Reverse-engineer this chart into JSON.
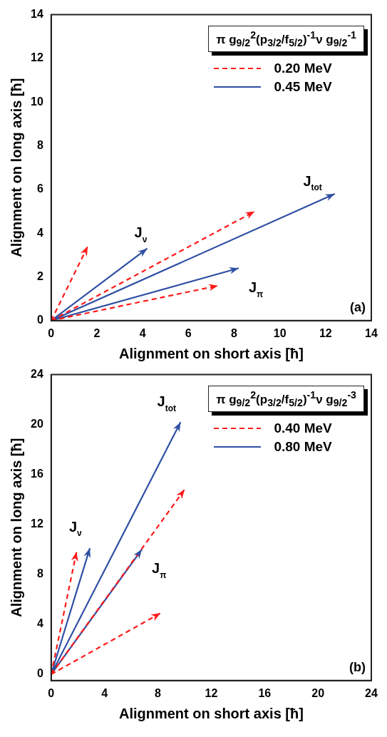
{
  "chart_data": [
    {
      "type": "line",
      "xlabel": "Alignment on short axis [ħ]",
      "ylabel": "Alignment on long axis [ħ]",
      "xlim": [
        0,
        14
      ],
      "xticks": [
        0,
        2,
        4,
        6,
        8,
        10,
        12,
        14
      ],
      "ylim": [
        0,
        14
      ],
      "yticks": [
        0,
        2,
        4,
        6,
        8,
        10,
        12,
        14
      ],
      "grid": false,
      "legend": "top right",
      "marker": "none",
      "legend_title": "π g$_{9/2}$$^{2}$(p$_{3/2}$/f$_{5/2}$)$^{-1}$ν g$_{9/2}$$^{-1}$",
      "series": [
        {
          "name": "0.20 MeV",
          "color": "#ff1a1a",
          "line_style": "dashed",
          "x": [
            0,
            1.6,
            null,
            0,
            7.3,
            null,
            0,
            8.9
          ],
          "values": [
            0,
            3.4,
            null,
            0,
            1.6,
            null,
            0,
            5.0
          ]
        },
        {
          "name": "0.45 MeV",
          "color": "#2e4fa3",
          "line_style": "solid",
          "x": [
            0,
            4.2,
            null,
            0,
            8.2,
            null,
            0,
            12.4
          ],
          "values": [
            0,
            3.3,
            null,
            0,
            2.4,
            null,
            0,
            5.8
          ]
        }
      ],
      "annotations": [
        "J$_{ν}$",
        "J$_{π}$",
        "J$_{tot}$",
        "(a)"
      ]
    },
    {
      "type": "line",
      "xlabel": "Alignment on short axis [ħ]",
      "ylabel": "Alignment on long axis [ħ]",
      "xlim": [
        0,
        24
      ],
      "xticks": [
        0,
        4,
        8,
        12,
        16,
        20,
        24
      ],
      "ylim": [
        -0.5,
        24
      ],
      "yticks": [
        0,
        4,
        8,
        12,
        16,
        20,
        24
      ],
      "grid": false,
      "legend": "top right",
      "marker": "none",
      "legend_title": "π g$_{9/2}$$^{2}$(p$_{3/2}$/f$_{5/2}$)$^{-1}$ν g$_{9/2}$$^{-3}$",
      "series": [
        {
          "name": "0.40 MeV",
          "color": "#ff1a1a",
          "line_style": "dashed",
          "x": [
            0,
            1.9,
            null,
            0,
            8.2,
            null,
            0,
            10.0
          ],
          "values": [
            0,
            9.8,
            null,
            0,
            4.9,
            null,
            0,
            14.8
          ]
        },
        {
          "name": "0.80 MeV",
          "color": "#2e4fa3",
          "line_style": "solid",
          "x": [
            0,
            2.9,
            null,
            0,
            6.8,
            null,
            0,
            9.7
          ],
          "values": [
            0,
            10.1,
            null,
            0,
            10.0,
            null,
            0,
            20.2
          ]
        }
      ],
      "annotations": [
        "J$_{ν}$",
        "J$_{π}$",
        "J$_{tot}$",
        "(b)"
      ]
    }
  ]
}
